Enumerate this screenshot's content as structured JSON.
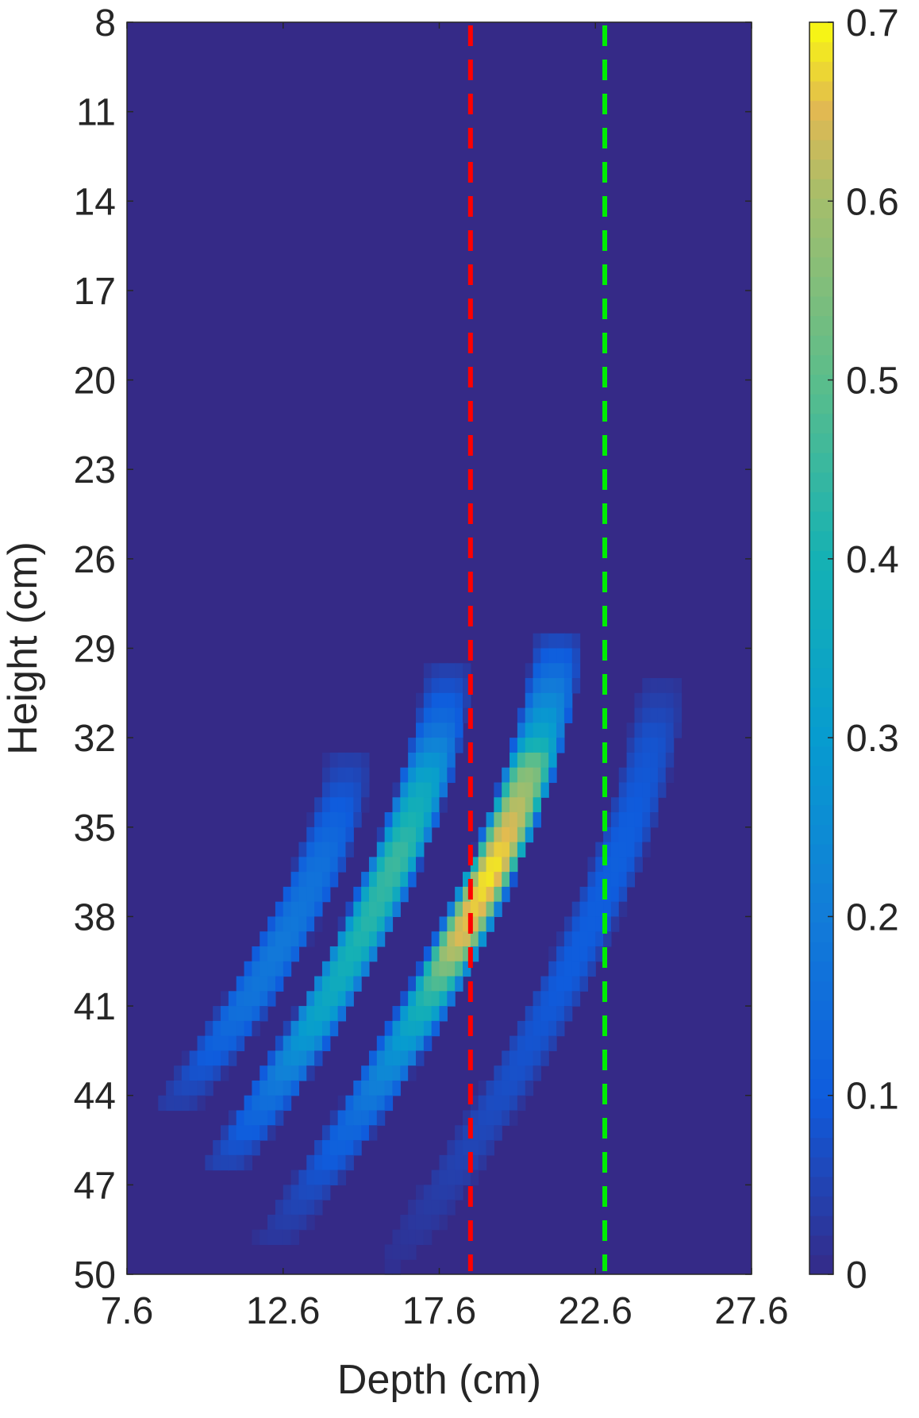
{
  "chart_data": {
    "type": "heatmap",
    "title": "",
    "xlabel": "Depth (cm)",
    "ylabel": "Height (cm)",
    "xlim": [
      7.6,
      27.6
    ],
    "ylim": [
      8,
      50
    ],
    "y_reversed": true,
    "grid": false,
    "xticks": [
      7.6,
      12.6,
      17.6,
      22.6,
      27.6
    ],
    "xtick_labels": [
      "7.6",
      "12.6",
      "17.6",
      "22.6",
      "27.6"
    ],
    "yticks": [
      8,
      11,
      14,
      17,
      20,
      23,
      26,
      29,
      32,
      35,
      38,
      41,
      44,
      47,
      50
    ],
    "ytick_labels": [
      "8",
      "11",
      "14",
      "17",
      "20",
      "23",
      "26",
      "29",
      "32",
      "35",
      "38",
      "41",
      "44",
      "47",
      "50"
    ],
    "colorbar": {
      "colormap": "parula",
      "range": [
        0,
        0.7
      ],
      "ticks": [
        0,
        0.1,
        0.2,
        0.3,
        0.4,
        0.5,
        0.6,
        0.7
      ],
      "tick_labels": [
        "0",
        "0.1",
        "0.2",
        "0.3",
        "0.4",
        "0.5",
        "0.6",
        "0.7"
      ]
    },
    "background_value": 0.0,
    "arcs": [
      {
        "name": "arc-1",
        "x_top": 14.7,
        "y_top": 32.5,
        "y_bottom": 44.5,
        "curvature": 0.12,
        "half_width": 0.85,
        "profile": [
          [
            32.5,
            0.03
          ],
          [
            34.0,
            0.09
          ],
          [
            36.0,
            0.16
          ],
          [
            39.0,
            0.19
          ],
          [
            41.0,
            0.17
          ],
          [
            43.0,
            0.09
          ],
          [
            44.5,
            0.03
          ]
        ]
      },
      {
        "name": "arc-2",
        "x_top": 17.9,
        "y_top": 29.5,
        "y_bottom": 46.5,
        "curvature": 0.09,
        "half_width": 0.85,
        "profile": [
          [
            29.5,
            0.03
          ],
          [
            31.5,
            0.15
          ],
          [
            33.5,
            0.35
          ],
          [
            36.0,
            0.46
          ],
          [
            38.5,
            0.42
          ],
          [
            41.5,
            0.33
          ],
          [
            44.0,
            0.17
          ],
          [
            46.5,
            0.04
          ]
        ]
      },
      {
        "name": "arc-3",
        "x_top": 21.4,
        "y_top": 28.5,
        "y_bottom": 49.0,
        "curvature": 0.085,
        "half_width": 0.85,
        "profile": [
          [
            28.5,
            0.04
          ],
          [
            30.5,
            0.22
          ],
          [
            32.0,
            0.35
          ],
          [
            33.0,
            0.55
          ],
          [
            34.5,
            0.63
          ],
          [
            36.5,
            0.69
          ],
          [
            39.0,
            0.64
          ],
          [
            40.5,
            0.45
          ],
          [
            42.5,
            0.28
          ],
          [
            45.0,
            0.14
          ],
          [
            47.0,
            0.07
          ],
          [
            49.0,
            0.02
          ]
        ]
      },
      {
        "name": "arc-4",
        "x_top": 24.7,
        "y_top": 30.0,
        "y_bottom": 50.0,
        "curvature": 0.085,
        "half_width": 0.85,
        "profile": [
          [
            30.0,
            0.02
          ],
          [
            32.0,
            0.08
          ],
          [
            36.0,
            0.11
          ],
          [
            40.0,
            0.1
          ],
          [
            44.0,
            0.07
          ],
          [
            47.0,
            0.04
          ],
          [
            50.0,
            0.01
          ]
        ]
      }
    ],
    "reference_lines": [
      {
        "name": "red-dashed-line",
        "x": 18.6,
        "color": "#ff0000",
        "style": "dashed"
      },
      {
        "name": "green-dashed-line",
        "x": 22.9,
        "color": "#00ee00",
        "style": "dashed"
      }
    ]
  }
}
